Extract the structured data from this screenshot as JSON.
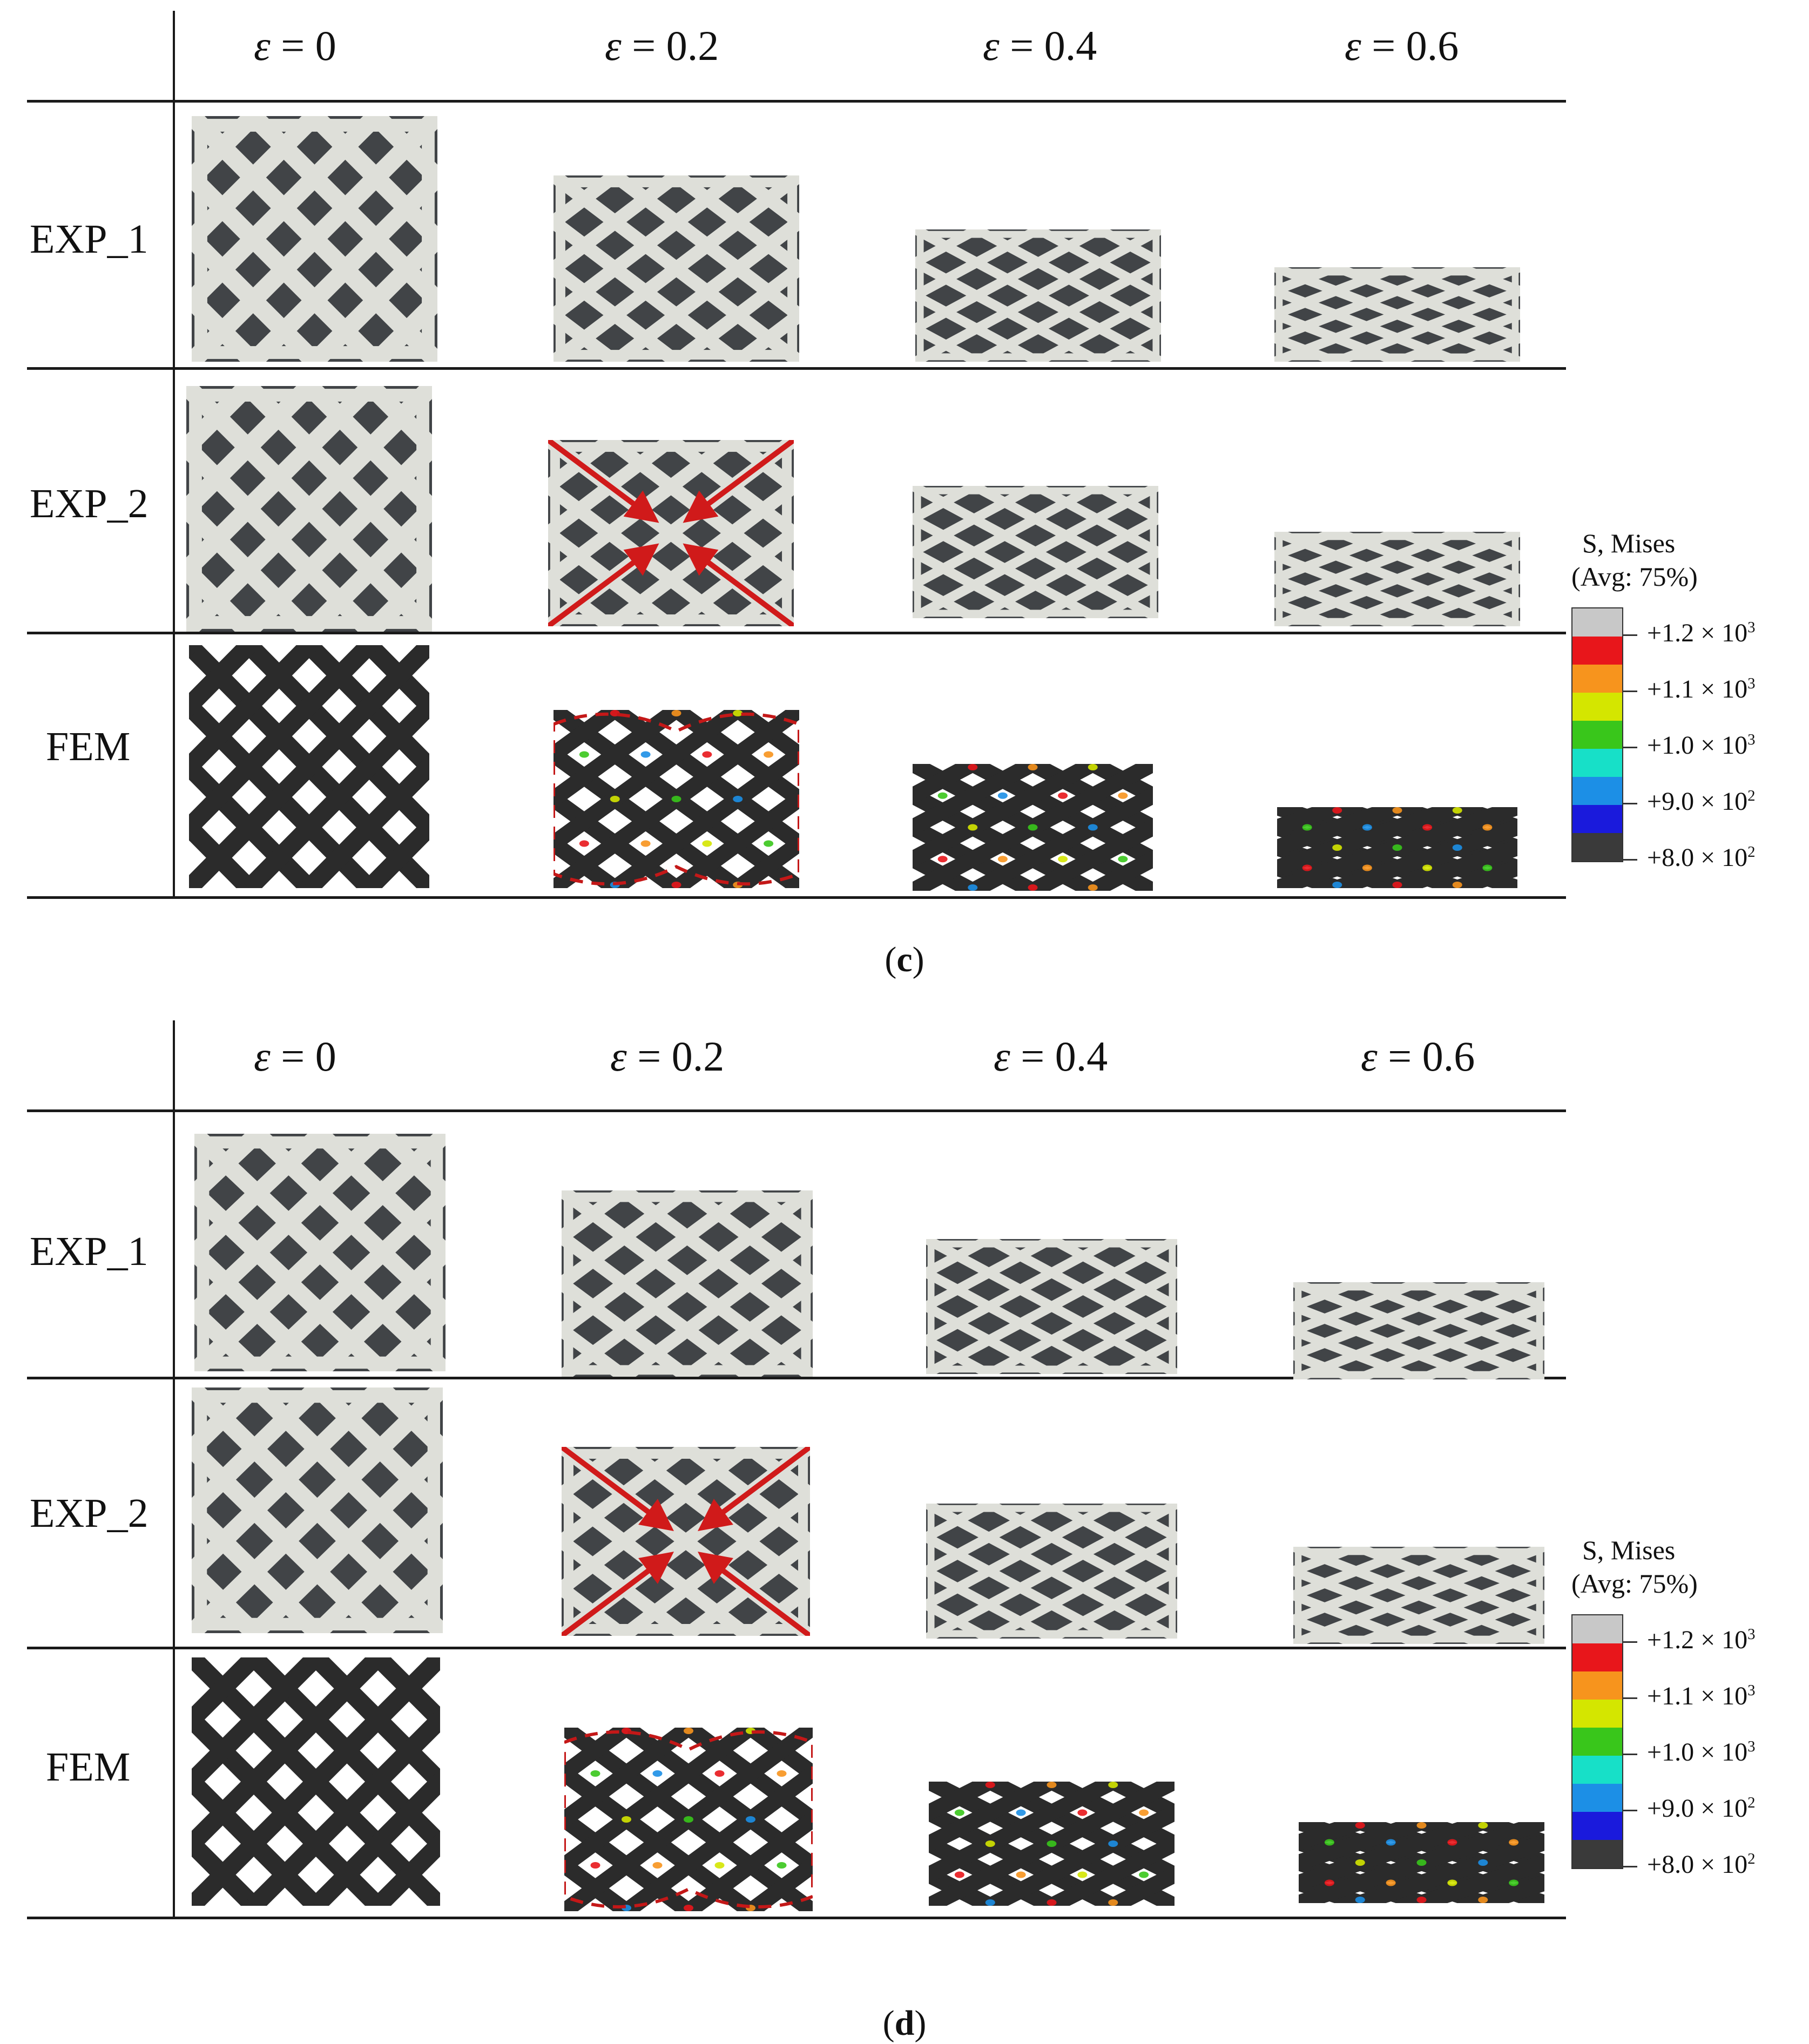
{
  "panels": [
    {
      "id": "c",
      "caption_open": "(",
      "caption_letter": "c",
      "caption_close": ")",
      "columns": [
        {
          "sym": "ε",
          "rest": " = 0"
        },
        {
          "sym": "ε",
          "rest": " = 0.2"
        },
        {
          "sym": "ε",
          "rest": " = 0.4"
        },
        {
          "sym": "ε",
          "rest": " = 0.6"
        }
      ],
      "rows": [
        "EXP_1",
        "EXP_2",
        "FEM"
      ],
      "legend": {
        "title_line1": "S, Mises",
        "title_line2": "(Avg: 75%)",
        "labels": [
          {
            "base": "+1.2 × 10",
            "exp": "3"
          },
          {
            "base": "+1.1 × 10",
            "exp": "3"
          },
          {
            "base": "+1.0 × 10",
            "exp": "3"
          },
          {
            "base": "+9.0 × 10",
            "exp": "2"
          },
          {
            "base": "+8.0 × 10",
            "exp": "2"
          }
        ],
        "colors": [
          "#c8c8c8",
          "#e8161b",
          "#f7941d",
          "#d4e600",
          "#39c61b",
          "#17e0c8",
          "#1c8fe6",
          "#1a1adc",
          "#3a3a3a"
        ]
      }
    },
    {
      "id": "d",
      "caption_open": "(",
      "caption_letter": "d",
      "caption_close": ")",
      "columns": [
        {
          "sym": "ε",
          "rest": " = 0"
        },
        {
          "sym": "ε",
          "rest": " = 0.2"
        },
        {
          "sym": "ε",
          "rest": " = 0.4"
        },
        {
          "sym": "ε",
          "rest": " = 0.6"
        }
      ],
      "rows": [
        "EXP_1",
        "EXP_2",
        "FEM"
      ],
      "legend": {
        "title_line1": "S, Mises",
        "title_line2": "(Avg: 75%)",
        "labels": [
          {
            "base": "+1.2 × 10",
            "exp": "3"
          },
          {
            "base": "+1.1 × 10",
            "exp": "3"
          },
          {
            "base": "+1.0 × 10",
            "exp": "3"
          },
          {
            "base": "+9.0 × 10",
            "exp": "2"
          },
          {
            "base": "+8.0 × 10",
            "exp": "2"
          }
        ],
        "colors": [
          "#c8c8c8",
          "#e8161b",
          "#f7941d",
          "#d4e600",
          "#39c61b",
          "#17e0c8",
          "#1c8fe6",
          "#1a1adc",
          "#3a3a3a"
        ]
      }
    }
  ]
}
